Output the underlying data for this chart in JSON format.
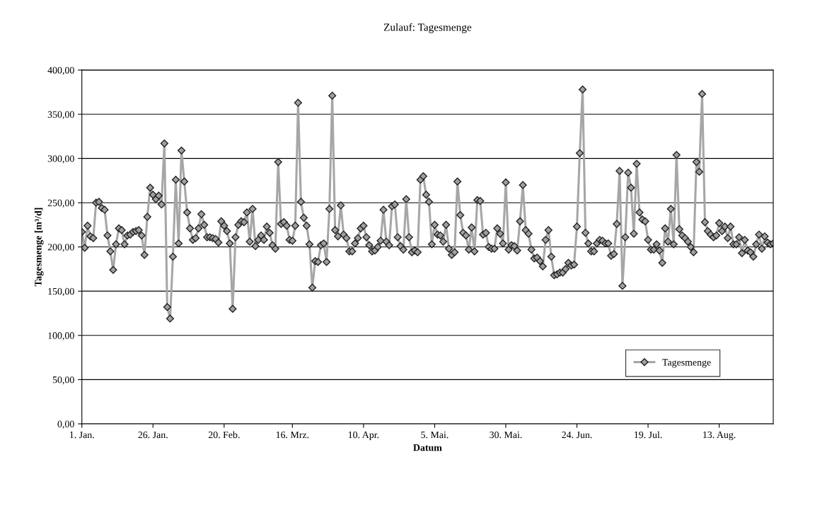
{
  "chart_data": {
    "type": "line",
    "title": "Zulauf: Tagesmenge",
    "xlabel": "Datum",
    "ylabel": "Tagesmenge [m³/d]",
    "categories": [
      "1. Jan.",
      null,
      null,
      null,
      null,
      null,
      null,
      null,
      null,
      null,
      null,
      null,
      null,
      null,
      null,
      null,
      null,
      null,
      null,
      null,
      null,
      null,
      null,
      null,
      null,
      "26. Jan.",
      null,
      null,
      null,
      null,
      null,
      null,
      null,
      null,
      null,
      null,
      null,
      null,
      null,
      null,
      null,
      null,
      null,
      null,
      null,
      null,
      null,
      null,
      null,
      null,
      "20. Feb.",
      null,
      null,
      null,
      null,
      null,
      null,
      null,
      null,
      null,
      null,
      null,
      null,
      null,
      null,
      null,
      null,
      null,
      null,
      null,
      null,
      null,
      null,
      null,
      "16. Mrz.",
      null,
      null,
      null,
      null,
      null,
      null,
      null,
      null,
      null,
      null,
      null,
      null,
      null,
      null,
      null,
      null,
      null,
      null,
      null,
      null,
      null,
      null,
      null,
      null,
      "10. Apr.",
      null,
      null,
      null,
      null,
      null,
      null,
      null,
      null,
      null,
      null,
      null,
      null,
      null,
      null,
      null,
      null,
      null,
      null,
      null,
      null,
      null,
      null,
      null,
      null,
      "5. Mai.",
      null,
      null,
      null,
      null,
      null,
      null,
      null,
      null,
      null,
      null,
      null,
      null,
      null,
      null,
      null,
      null,
      null,
      null,
      null,
      null,
      null,
      null,
      null,
      null,
      "30. Mai.",
      null,
      null,
      null,
      null,
      null,
      null,
      null,
      null,
      null,
      null,
      null,
      null,
      null,
      null,
      null,
      null,
      null,
      null,
      null,
      null,
      null,
      null,
      null,
      null,
      "24. Jun.",
      null,
      null,
      null,
      null,
      null,
      null,
      null,
      null,
      null,
      null,
      null,
      null,
      null,
      null,
      null,
      null,
      null,
      null,
      null,
      null,
      null,
      null,
      null,
      null,
      "19. Jul.",
      null,
      null,
      null,
      null,
      null,
      null,
      null,
      null,
      null,
      null,
      null,
      null,
      null,
      null,
      null,
      null,
      null,
      null,
      null,
      null,
      null,
      null,
      null,
      null,
      "13. Aug.",
      null,
      null,
      null,
      null,
      null,
      null,
      null,
      null,
      null,
      null,
      null,
      null,
      null,
      null,
      null,
      null,
      null,
      null,
      null
    ],
    "series": [
      {
        "name": "Tagesmenge",
        "color": "#a6a6a6",
        "values": [
          217,
          199,
          224,
          212,
          210,
          250,
          251,
          244,
          242,
          213,
          195,
          174,
          203,
          221,
          219,
          203,
          213,
          214,
          217,
          218,
          219,
          213,
          191,
          234,
          267,
          259,
          254,
          258,
          248,
          317,
          132,
          119,
          189,
          276,
          204,
          309,
          274,
          239,
          221,
          208,
          210,
          221,
          237,
          225,
          211,
          211,
          210,
          209,
          205,
          229,
          224,
          218,
          204,
          130,
          211,
          225,
          229,
          228,
          239,
          206,
          243,
          201,
          208,
          213,
          208,
          223,
          216,
          202,
          198,
          296,
          226,
          228,
          224,
          208,
          207,
          224,
          363,
          251,
          233,
          224,
          203,
          154,
          184,
          183,
          202,
          204,
          183,
          243,
          371,
          219,
          212,
          247,
          214,
          210,
          195,
          195,
          204,
          210,
          221,
          224,
          211,
          202,
          195,
          196,
          200,
          207,
          242,
          206,
          202,
          246,
          248,
          211,
          201,
          197,
          254,
          211,
          194,
          196,
          194,
          276,
          280,
          259,
          251,
          203,
          225,
          214,
          213,
          206,
          225,
          198,
          191,
          194,
          274,
          236,
          216,
          213,
          197,
          222,
          195,
          253,
          252,
          214,
          216,
          200,
          198,
          198,
          221,
          215,
          204,
          273,
          197,
          202,
          201,
          196,
          229,
          270,
          219,
          215,
          197,
          187,
          188,
          184,
          178,
          208,
          219,
          189,
          168,
          169,
          171,
          171,
          175,
          182,
          179,
          180,
          223,
          306,
          378,
          216,
          204,
          195,
          195,
          204,
          208,
          207,
          204,
          204,
          190,
          192,
          226,
          286,
          156,
          211,
          284,
          267,
          215,
          294,
          239,
          231,
          229,
          208,
          197,
          197,
          203,
          196,
          182,
          221,
          206,
          243,
          203,
          304,
          220,
          213,
          210,
          206,
          200,
          194,
          296,
          285,
          373,
          228,
          218,
          214,
          211,
          213,
          227,
          218,
          223,
          210,
          223,
          203,
          203,
          211,
          193,
          208,
          196,
          194,
          189,
          203,
          214,
          198,
          212,
          205,
          203,
          204
        ]
      }
    ],
    "ylim": [
      0,
      400
    ],
    "yticks": [
      {
        "value": 0,
        "label": "0,00"
      },
      {
        "value": 50,
        "label": "50,00"
      },
      {
        "value": 100,
        "label": "100,00"
      },
      {
        "value": 150,
        "label": "150,00"
      },
      {
        "value": 200,
        "label": "200,00"
      },
      {
        "value": 250,
        "label": "250,00"
      },
      {
        "value": 300,
        "label": "300,00"
      },
      {
        "value": 350,
        "label": "350,00"
      },
      {
        "value": 400,
        "label": "400,00"
      }
    ],
    "grid": "y",
    "legend": "lower right",
    "marker": "diamond",
    "line_style": "solid"
  }
}
